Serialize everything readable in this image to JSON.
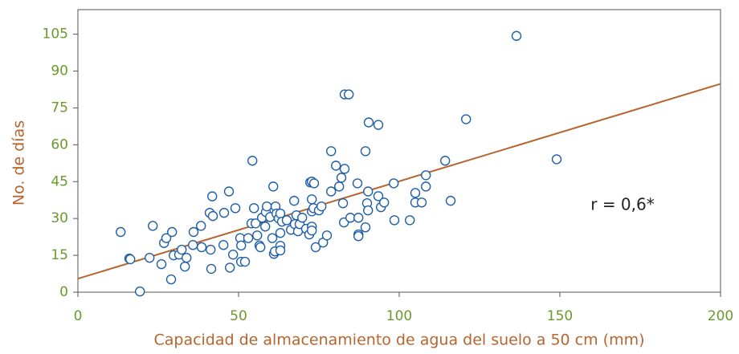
{
  "chart_data": {
    "type": "scatter",
    "xlabel": "Capacidad de almacenamiento de agua del suelo a 50 cm (mm)",
    "ylabel": "No. de días",
    "annotation": "r = 0,6*",
    "xlim": [
      0,
      200
    ],
    "ylim": [
      0,
      115
    ],
    "xticks": [
      0,
      50,
      100,
      150,
      200
    ],
    "yticks": [
      0,
      15,
      30,
      45,
      60,
      75,
      90,
      105
    ],
    "color": "#1f5fa8",
    "trendline": {
      "color": "#b5652d",
      "x": [
        0,
        200
      ],
      "y": [
        5.5,
        84.8
      ]
    },
    "x": [
      13.3,
      16,
      16.3,
      19.3,
      22.3,
      23.3,
      26,
      26.8,
      27.5,
      29.3,
      29,
      29.8,
      31.5,
      32.3,
      33.3,
      33.8,
      36,
      35.8,
      38.3,
      38.5,
      41.3,
      41,
      41.8,
      41.5,
      42,
      45.5,
      45.3,
      47,
      47.3,
      48.3,
      49,
      50.5,
      50.8,
      50.8,
      52,
      53,
      54,
      54.3,
      54.8,
      55.3,
      55.8,
      56.5,
      56.8,
      57.3,
      58.3,
      58.5,
      58.8,
      59.8,
      60.5,
      60.8,
      61,
      61.3,
      61.5,
      61.8,
      62.5,
      63,
      63,
      63,
      63,
      63.5,
      65,
      66.3,
      67.3,
      67.5,
      68,
      68.5,
      69,
      69.8,
      71,
      72,
      72.3,
      72.8,
      72.8,
      72.8,
      72.8,
      72.8,
      73.3,
      73.5,
      74,
      75,
      75.8,
      76.3,
      77.5,
      78.8,
      78.8,
      80.3,
      81.3,
      82,
      82.5,
      82.8,
      83,
      83,
      84.3,
      84.8,
      87,
      87.3,
      87.3,
      87.3,
      89.5,
      89.5,
      90,
      90.3,
      90.3,
      90.5,
      93.5,
      93.5,
      94.3,
      95.3,
      98.3,
      98.5,
      103.3,
      105,
      105,
      107,
      108.3,
      108.3,
      114.3,
      116,
      120.8,
      136.5,
      149
    ],
    "y": [
      24.5,
      13.7,
      13.4,
      0.3,
      14,
      27,
      11.4,
      20,
      22,
      24.5,
      5.2,
      15,
      15.3,
      17.3,
      10.4,
      14,
      24.5,
      19.2,
      27,
      18.3,
      17.3,
      32.3,
      39,
      9.5,
      31,
      32.3,
      19.2,
      41,
      10,
      15.3,
      34.2,
      22,
      19,
      12.4,
      12.4,
      22,
      28,
      53.5,
      34.2,
      28,
      23.1,
      19,
      18.3,
      30.3,
      26.7,
      32.6,
      34.9,
      30.6,
      22,
      43,
      15.6,
      16.6,
      34.9,
      32,
      30,
      24.1,
      18.9,
      17,
      32,
      28.7,
      29.3,
      25.4,
      37.2,
      27.7,
      31.3,
      24.8,
      27.7,
      30.3,
      25.8,
      23.5,
      44.7,
      45,
      32.9,
      37.8,
      26.7,
      25.1,
      34.2,
      44.3,
      18.3,
      33.3,
      34.9,
      20.2,
      23.1,
      57.4,
      41,
      51.5,
      43,
      46.6,
      36.2,
      28.4,
      80.5,
      50.2,
      80.5,
      30.3,
      44.3,
      30.3,
      23.5,
      22.8,
      57.4,
      26.4,
      36.2,
      41,
      33.3,
      69.1,
      68.1,
      39.1,
      34.6,
      36.5,
      44.3,
      29.3,
      29.3,
      40.4,
      36.5,
      36.5,
      47.6,
      43,
      53.5,
      37.2,
      70.4,
      104.3,
      54.1
    ]
  }
}
